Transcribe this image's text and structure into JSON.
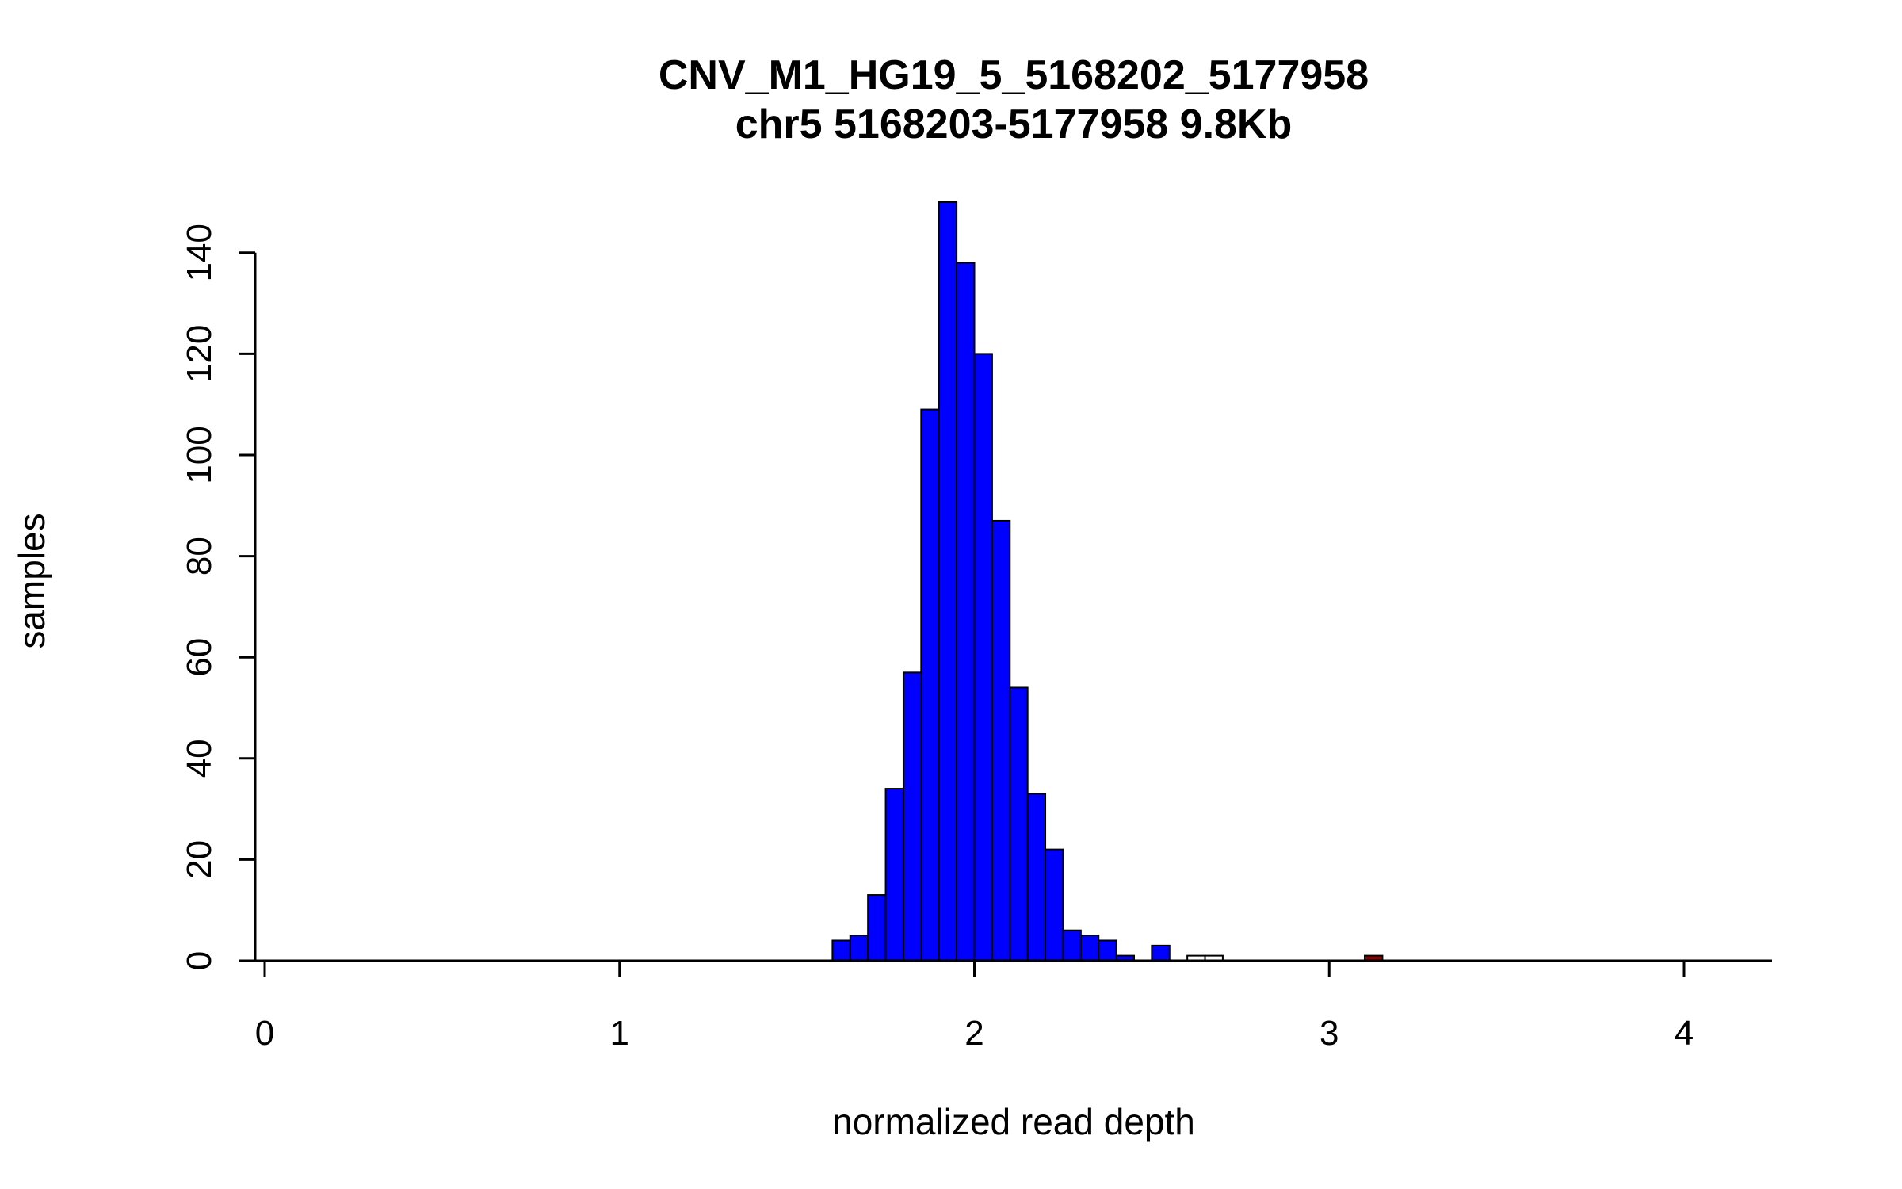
{
  "chart_data": {
    "type": "histogram",
    "title": "CNV_M1_HG19_5_5168202_5177958",
    "subtitle": "chr5 5168203-5177958 9.8Kb",
    "xlabel": "normalized read depth",
    "ylabel": "samples",
    "xlim": [
      0,
      4.25
    ],
    "ylim": [
      0,
      150
    ],
    "x_ticks": [
      0,
      1,
      2,
      3,
      4
    ],
    "y_ticks": [
      0,
      20,
      40,
      60,
      80,
      100,
      120,
      140
    ],
    "grid": false,
    "legend": null,
    "bin_width": 0.05,
    "bins": [
      [
        1.6,
        4,
        "blue"
      ],
      [
        1.65,
        5,
        "blue"
      ],
      [
        1.7,
        13,
        "blue"
      ],
      [
        1.75,
        34,
        "blue"
      ],
      [
        1.8,
        57,
        "blue"
      ],
      [
        1.85,
        109,
        "blue"
      ],
      [
        1.9,
        150,
        "blue"
      ],
      [
        1.95,
        138,
        "blue"
      ],
      [
        2.0,
        120,
        "blue"
      ],
      [
        2.05,
        87,
        "blue"
      ],
      [
        2.1,
        54,
        "blue"
      ],
      [
        2.15,
        33,
        "blue"
      ],
      [
        2.2,
        22,
        "blue"
      ],
      [
        2.25,
        6,
        "blue"
      ],
      [
        2.3,
        5,
        "blue"
      ],
      [
        2.35,
        4,
        "blue"
      ],
      [
        2.4,
        1,
        "blue"
      ],
      [
        2.5,
        3,
        "blue"
      ],
      [
        2.6,
        1,
        "white"
      ],
      [
        2.65,
        1,
        "white"
      ],
      [
        3.1,
        1,
        "darkred"
      ]
    ],
    "colors": {
      "blue": "#0000FF",
      "white": "#FFFFFF",
      "darkred": "#8B0000",
      "axis": "#000000"
    }
  }
}
